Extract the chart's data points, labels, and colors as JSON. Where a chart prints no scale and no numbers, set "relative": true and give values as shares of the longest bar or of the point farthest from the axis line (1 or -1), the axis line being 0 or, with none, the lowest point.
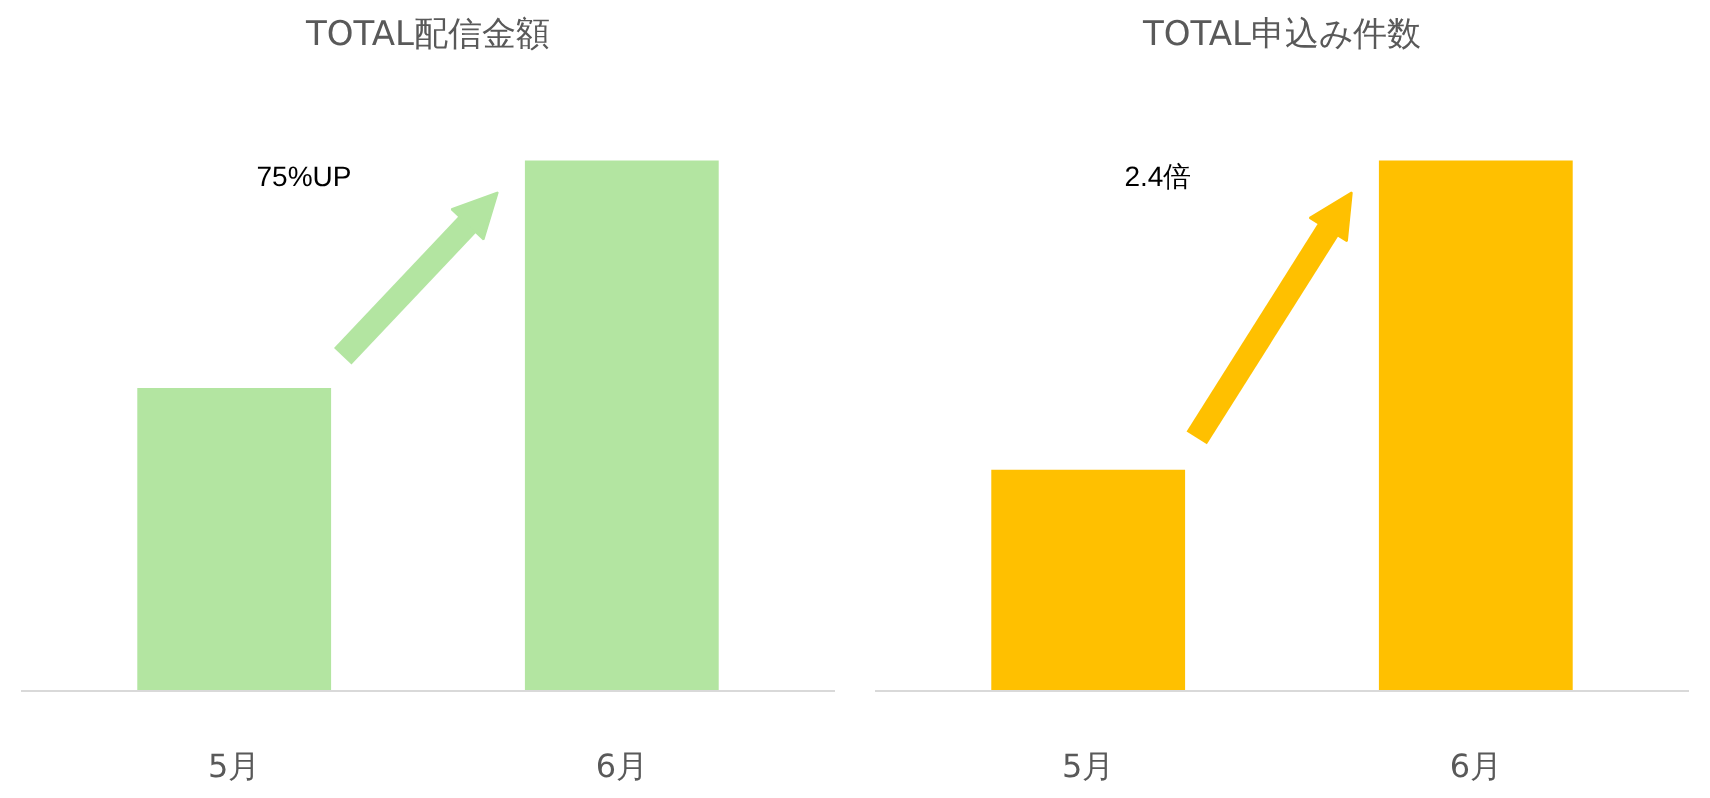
{
  "chart_data": [
    {
      "type": "bar",
      "title": "TOTAL配信金額",
      "categories": [
        "5月",
        "6月"
      ],
      "values": [
        0.571,
        1
      ],
      "relative": true,
      "color": "#b3e5a1",
      "annotations": [
        "75%UP"
      ]
    },
    {
      "type": "bar",
      "title": "TOTAL申込み件数",
      "categories": [
        "5月",
        "6月"
      ],
      "values": [
        0.417,
        1
      ],
      "relative": true,
      "color": "#ffc000",
      "annotations": [
        "2.4倍"
      ]
    }
  ]
}
